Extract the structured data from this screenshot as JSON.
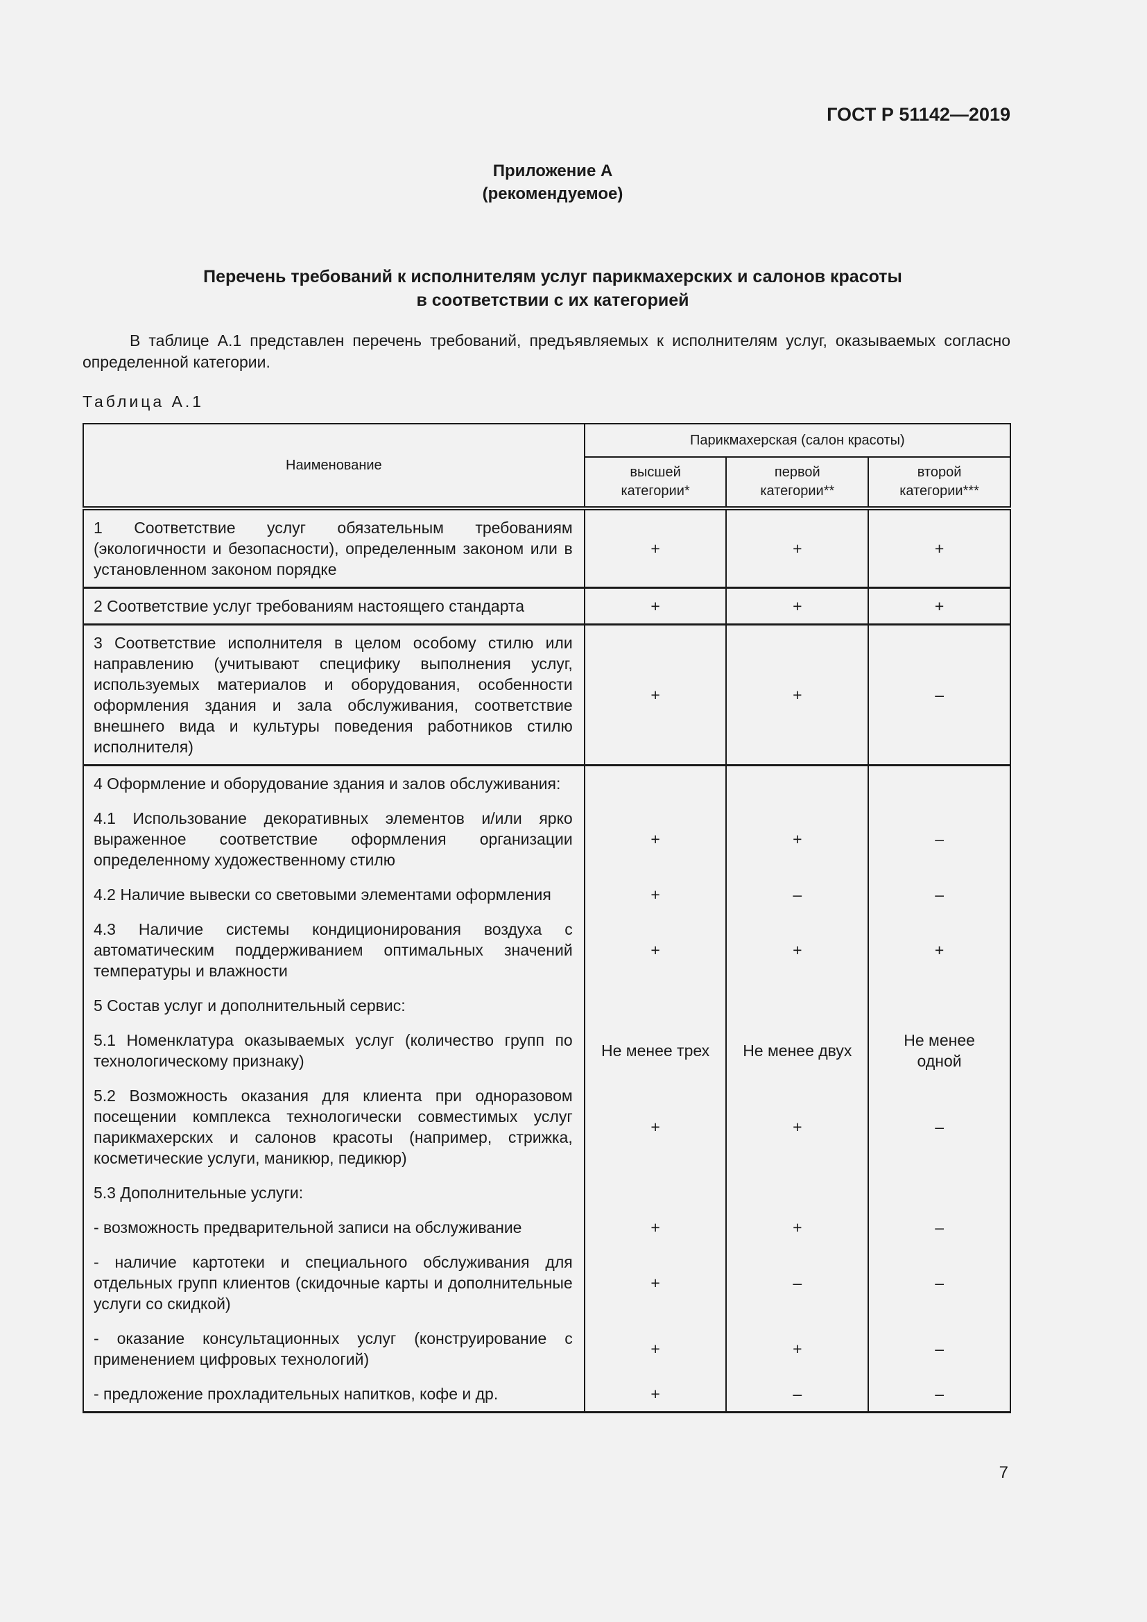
{
  "header": {
    "standard": "ГОСТ Р 51142—2019"
  },
  "annex": {
    "title": "Приложение А",
    "type": "(рекомендуемое)"
  },
  "section_title": [
    "Перечень требований к исполнителям услуг парикмахерских и салонов красоты",
    "в соответствии с их категорией"
  ],
  "intro": "В таблице А.1 представлен перечень требований, предъявляемых к исполнителям услуг, оказываемых согласно определенной категории.",
  "table_caption": "Таблица А.1",
  "table": {
    "col_name": "Наименование",
    "group": "Парикмахерская (салон красоты)",
    "cols": [
      [
        "высшей",
        "категории*"
      ],
      [
        "первой",
        "категории**"
      ],
      [
        "второй",
        "категории***"
      ]
    ],
    "rows": [
      {
        "name": "1 Соответствие услуг обязательным требованиям (экологичности и безопасности), определенным законом или в установленном законом порядке",
        "values": [
          "+",
          "+",
          "+"
        ],
        "sep": true
      },
      {
        "name": "2 Соответствие услуг требованиям настоящего стандарта",
        "values": [
          "+",
          "+",
          "+"
        ],
        "sep": true
      },
      {
        "name": "3 Соответствие исполнителя в целом особому стилю или направлению (учитывают специфику выполнения услуг, используемых материалов и оборудования, особенности оформления здания и зала обслуживания, соответствие внешнего вида и культуры поведения работников стилю исполнителя)",
        "values": [
          "+",
          "+",
          "–"
        ],
        "sep": true
      },
      {
        "name": "4 Оформление и оборудование здания и залов обслуживания:",
        "values": [
          "",
          "",
          ""
        ],
        "sep": true
      },
      {
        "name": "4.1 Использование декоративных элементов и/или ярко выраженное соответствие оформления организации определенному художественному стилю",
        "values": [
          "+",
          "+",
          "–"
        ]
      },
      {
        "name": "4.2 Наличие вывески со световыми элементами оформления",
        "values": [
          "+",
          "–",
          "–"
        ]
      },
      {
        "name": "4.3 Наличие системы кондиционирования воздуха с автоматическим поддерживанием оптимальных значений температуры и влажности",
        "values": [
          "+",
          "+",
          "+"
        ]
      },
      {
        "name": "5 Состав услуг и дополнительный сервис:",
        "values": [
          "",
          "",
          ""
        ]
      },
      {
        "name": "5.1 Номенклатура оказываемых услуг (количество групп по технологическому признаку)",
        "values": [
          "Не менее трех",
          "Не менее двух",
          "Не менее одной"
        ]
      },
      {
        "name": "5.2 Возможность оказания для клиента при одноразовом посещении комплекса технологически совместимых услуг парикмахерских и салонов красоты (например, стрижка, косметические услуги, маникюр, педикюр)",
        "values": [
          "+",
          "+",
          "–"
        ]
      },
      {
        "name": "5.3 Дополнительные услуги:",
        "values": [
          "",
          "",
          ""
        ]
      },
      {
        "name": "- возможность предварительной записи на обслуживание",
        "values": [
          "+",
          "+",
          "–"
        ]
      },
      {
        "name": "- наличие картотеки и специального обслуживания для отдельных групп клиентов (скидочные карты и дополнительные услуги со скидкой)",
        "values": [
          "+",
          "–",
          "–"
        ]
      },
      {
        "name": "- оказание консультационных услуг (конструирование с применением цифровых технологий)",
        "values": [
          "+",
          "+",
          "–"
        ]
      },
      {
        "name": "- предложение прохладительных напитков, кофе и др.",
        "values": [
          "+",
          "–",
          "–"
        ]
      }
    ]
  },
  "page_number": "7"
}
